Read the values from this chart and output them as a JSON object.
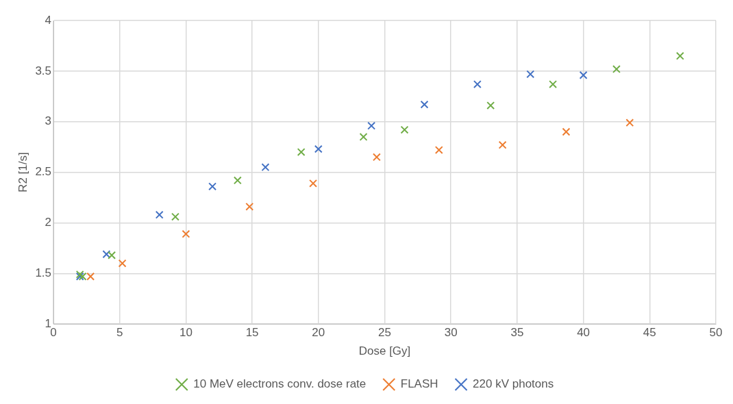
{
  "chart_data": {
    "type": "scatter",
    "xlabel": "Dose [Gy]",
    "ylabel": "R2 [1/s]",
    "xlim": [
      0,
      50
    ],
    "xticks": [
      0,
      5,
      10,
      15,
      20,
      25,
      30,
      35,
      40,
      45,
      50
    ],
    "ylim": [
      1,
      4
    ],
    "yticks": [
      1,
      1.5,
      2,
      2.5,
      3,
      3.5,
      4
    ],
    "grid": true,
    "legend": "bottom",
    "marker": "cross",
    "series": [
      {
        "name": "10 MeV electrons conv. dose rate",
        "color": "#70ad47",
        "x": [
          2.0,
          2.2,
          4.4,
          9.2,
          13.9,
          18.7,
          23.4,
          26.5,
          33.0,
          37.7,
          42.5,
          47.3
        ],
        "values": [
          1.49,
          1.47,
          1.68,
          2.06,
          2.42,
          2.7,
          2.85,
          2.92,
          3.16,
          3.37,
          3.52,
          3.65
        ]
      },
      {
        "name": "FLASH",
        "color": "#ed7d31",
        "x": [
          2.8,
          5.2,
          10.0,
          14.8,
          19.6,
          24.4,
          29.1,
          33.9,
          38.7,
          43.5
        ],
        "values": [
          1.47,
          1.6,
          1.89,
          2.16,
          2.39,
          2.65,
          2.72,
          2.77,
          2.9,
          2.99
        ]
      },
      {
        "name": "220 kV photons",
        "color": "#4472c4",
        "x": [
          2.0,
          4.0,
          8.0,
          12.0,
          16.0,
          20.0,
          24.0,
          28.0,
          32.0,
          36.0,
          40.0
        ],
        "values": [
          1.47,
          1.69,
          2.08,
          2.36,
          2.55,
          2.73,
          2.96,
          3.17,
          3.37,
          3.47,
          3.46
        ]
      }
    ]
  }
}
